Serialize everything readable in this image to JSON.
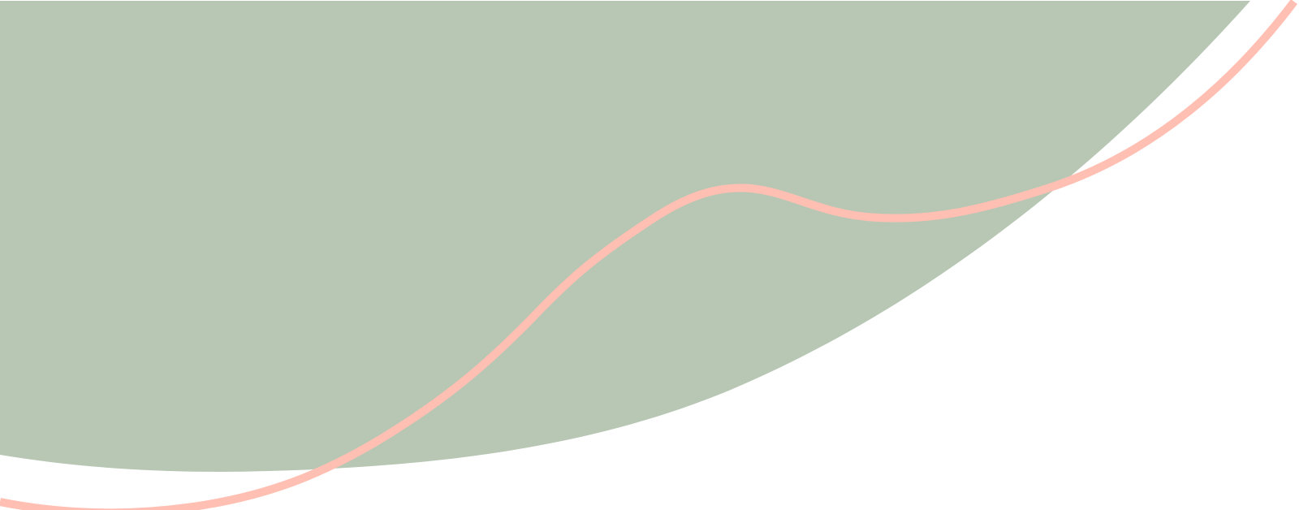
{
  "colors": {
    "background": "#ffffff",
    "green_shape": "#b7c7b4",
    "wave_line": "#ffbfb2"
  }
}
